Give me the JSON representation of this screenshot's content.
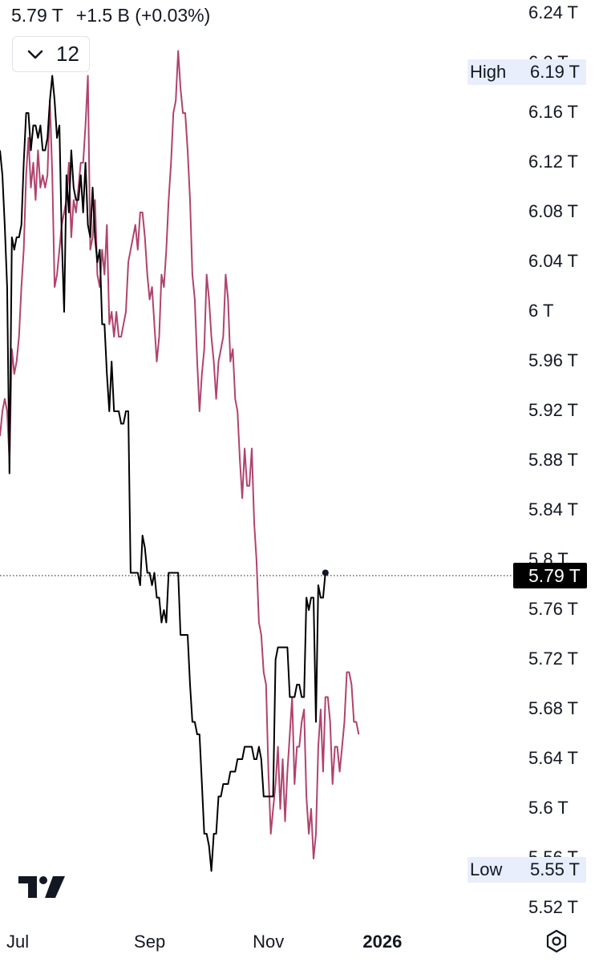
{
  "header": {
    "price": "5.79 T",
    "change": "+1.5 B (+0.03%)"
  },
  "indicators_button": {
    "count": "12"
  },
  "badges": {
    "high": {
      "label": "High",
      "value": "6.19 T"
    },
    "low": {
      "label": "Low",
      "value": "5.55 T"
    },
    "last": "5.79 T"
  },
  "chart_data": {
    "type": "line",
    "y_ticks": [
      "6.24 T",
      "6.2 T",
      "6.16 T",
      "6.12 T",
      "6.08 T",
      "6.04 T",
      "6 T",
      "5.96 T",
      "5.92 T",
      "5.88 T",
      "5.84 T",
      "5.8 T",
      "5.76 T",
      "5.72 T",
      "5.68 T",
      "5.64 T",
      "5.6 T",
      "5.56 T",
      "5.52 T"
    ],
    "y_tick_values": [
      6.24,
      6.2,
      6.16,
      6.12,
      6.08,
      6.04,
      6.0,
      5.96,
      5.92,
      5.88,
      5.84,
      5.8,
      5.76,
      5.72,
      5.68,
      5.64,
      5.6,
      5.56,
      5.52
    ],
    "ylim": [
      5.52,
      6.24
    ],
    "x_ticks": [
      {
        "label": "Jul",
        "bold": false
      },
      {
        "label": "Sep",
        "bold": false
      },
      {
        "label": "Nov",
        "bold": false
      },
      {
        "label": "2026",
        "bold": true
      }
    ],
    "x_tick_indices": [
      4,
      63,
      113,
      161
    ],
    "x_index_range": [
      0,
      185
    ],
    "last_price": 5.79,
    "high": 6.19,
    "low": 5.55,
    "series": [
      {
        "color": "#000000",
        "values": [
          6.13,
          6.11,
          6.07,
          6.02,
          5.87,
          6.06,
          6.05,
          6.06,
          6.06,
          6.07,
          6.12,
          6.16,
          6.16,
          6.13,
          6.15,
          6.15,
          6.14,
          6.15,
          6.13,
          6.13,
          6.14,
          6.17,
          6.19,
          6.17,
          6.14,
          6.15,
          6.06,
          6.0,
          6.11,
          6.08,
          6.13,
          6.1,
          6.09,
          6.09,
          6.11,
          6.08,
          6.12,
          6.07,
          6.06,
          6.1,
          6.06,
          6.04,
          6.05,
          5.99,
          5.99,
          5.95,
          5.92,
          5.96,
          5.92,
          5.92,
          5.92,
          5.91,
          5.91,
          5.92,
          5.92,
          5.79,
          5.79,
          5.79,
          5.79,
          5.78,
          5.82,
          5.81,
          5.79,
          5.79,
          5.78,
          5.79,
          5.77,
          5.77,
          5.75,
          5.76,
          5.75,
          5.79,
          5.79,
          5.79,
          5.79,
          5.79,
          5.74,
          5.74,
          5.74,
          5.74,
          5.7,
          5.67,
          5.67,
          5.66,
          5.66,
          5.62,
          5.58,
          5.58,
          5.57,
          5.55,
          5.58,
          5.58,
          5.61,
          5.61,
          5.62,
          5.62,
          5.62,
          5.63,
          5.63,
          5.63,
          5.64,
          5.64,
          5.64,
          5.65,
          5.65,
          5.65,
          5.65,
          5.64,
          5.64,
          5.65,
          5.64,
          5.61,
          5.61,
          5.61,
          5.61,
          5.61,
          5.72,
          5.73,
          5.73,
          5.73,
          5.73,
          5.73,
          5.69,
          5.69,
          5.69,
          5.7,
          5.7,
          5.69,
          5.69,
          5.77,
          5.76,
          5.77,
          5.77,
          5.67,
          5.78,
          5.77,
          5.77,
          5.79
        ]
      },
      {
        "color": "#b0436d",
        "values": [
          5.9,
          5.92,
          5.93,
          5.92,
          5.88,
          5.97,
          5.95,
          5.96,
          5.98,
          6.02,
          6.05,
          6.11,
          6.14,
          6.1,
          6.12,
          6.09,
          6.13,
          6.1,
          6.11,
          6.1,
          6.11,
          6.17,
          6.11,
          6.02,
          6.03,
          6.05,
          6.07,
          6.08,
          6.09,
          6.12,
          6.06,
          6.09,
          6.08,
          6.1,
          6.12,
          6.12,
          6.15,
          6.19,
          6.05,
          6.06,
          6.09,
          6.03,
          6.02,
          6.05,
          6.03,
          6.07,
          5.99,
          6.0,
          5.98,
          6.0,
          5.98,
          5.98,
          5.99,
          6.0,
          6.04,
          6.05,
          6.06,
          6.07,
          6.05,
          6.08,
          6.08,
          6.06,
          6.03,
          6.01,
          6.02,
          5.99,
          5.96,
          5.98,
          6.03,
          6.02,
          6.05,
          6.09,
          6.12,
          6.16,
          6.17,
          6.21,
          6.18,
          6.16,
          6.16,
          6.13,
          6.09,
          6.03,
          6.01,
          5.96,
          5.92,
          5.95,
          5.97,
          6.03,
          6.01,
          5.98,
          5.96,
          5.93,
          5.96,
          5.97,
          5.98,
          6.03,
          6.01,
          5.96,
          5.97,
          5.93,
          5.92,
          5.88,
          5.85,
          5.89,
          5.86,
          5.86,
          5.89,
          5.83,
          5.8,
          5.75,
          5.74,
          5.71,
          5.7,
          5.63,
          5.58,
          5.6,
          5.62,
          5.65,
          5.6,
          5.64,
          5.59,
          5.63,
          5.66,
          5.69,
          5.62,
          5.65,
          5.65,
          5.67,
          5.68,
          5.61,
          5.58,
          5.6,
          5.56,
          5.58,
          5.65,
          5.68,
          5.63,
          5.69,
          5.69,
          5.67,
          5.62,
          5.65,
          5.65,
          5.63,
          5.65,
          5.67,
          5.71,
          5.71,
          5.7,
          5.67,
          5.67,
          5.66
        ]
      }
    ]
  }
}
